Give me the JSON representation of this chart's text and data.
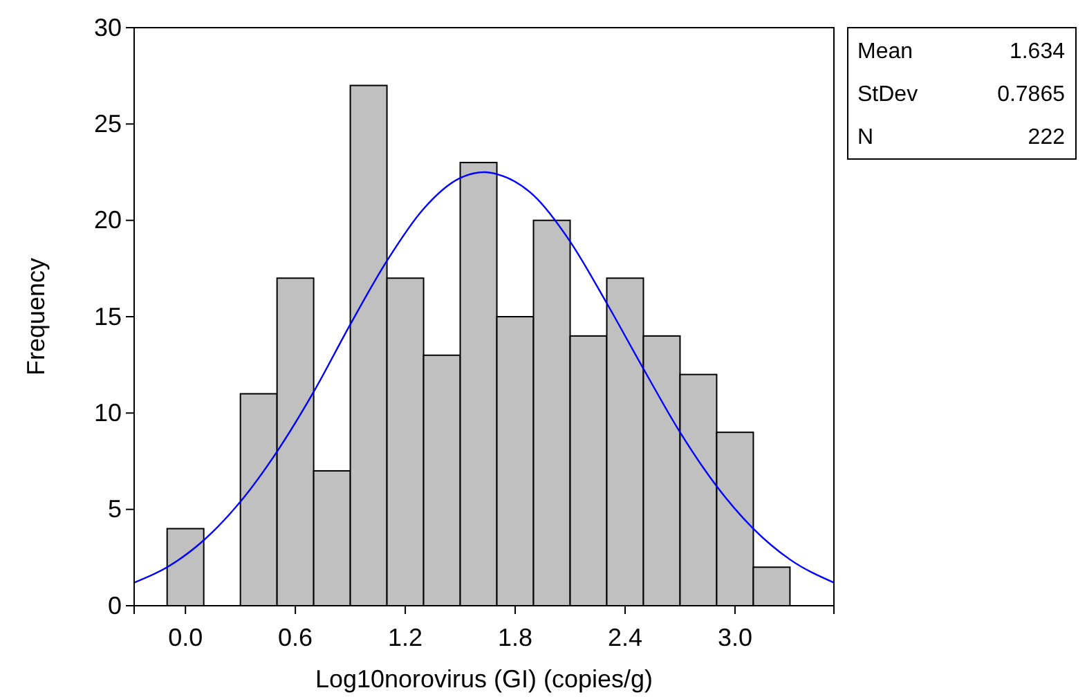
{
  "chart_data": {
    "type": "histogram",
    "xlabel": "Log10norovirus (GI) (copies/g)",
    "ylabel": "Frequency",
    "bins": [
      -0.1,
      0.1,
      0.3,
      0.5,
      0.7,
      0.9,
      1.1,
      1.3,
      1.5,
      1.7,
      1.9,
      2.1,
      2.3,
      2.5,
      2.7,
      2.9,
      3.1,
      3.3
    ],
    "series": [
      {
        "color": "#c0c0c0",
        "values": [
          4,
          0,
          11,
          17,
          7,
          27,
          17,
          13,
          23,
          15,
          20,
          14,
          17,
          14,
          12,
          9,
          2
        ]
      },
      {
        "type": "line",
        "color": "#0000ff",
        "x": [
          -0.28,
          -0.1,
          0.1,
          0.3,
          0.5,
          0.7,
          0.9,
          1.1,
          1.3,
          1.5,
          1.634,
          1.7,
          1.9,
          2.1,
          2.3,
          2.5,
          2.7,
          2.9,
          3.1,
          3.3,
          3.54
        ],
        "values": [
          1.2,
          2.0,
          3.4,
          5.4,
          8.0,
          11.1,
          14.6,
          17.9,
          20.6,
          22.2,
          22.5,
          22.4,
          21.3,
          18.9,
          15.7,
          12.3,
          9.0,
          6.2,
          4.0,
          2.4,
          1.2
        ]
      }
    ],
    "xlim": [
      -0.28,
      3.54
    ],
    "xticks": [
      {
        "value": 0,
        "label": "0.0"
      },
      0.6,
      1.2,
      1.8,
      2.4,
      {
        "value": 3,
        "label": "3.0"
      }
    ],
    "ylim": [
      0,
      30
    ],
    "yticks": [
      0,
      5,
      10,
      15,
      20,
      25,
      30
    ],
    "grid": false,
    "marker": "none",
    "line_style": "solid",
    "annotations": [
      "Mean",
      "1.634",
      "StDev",
      "0.7865",
      "N",
      "222"
    ]
  }
}
